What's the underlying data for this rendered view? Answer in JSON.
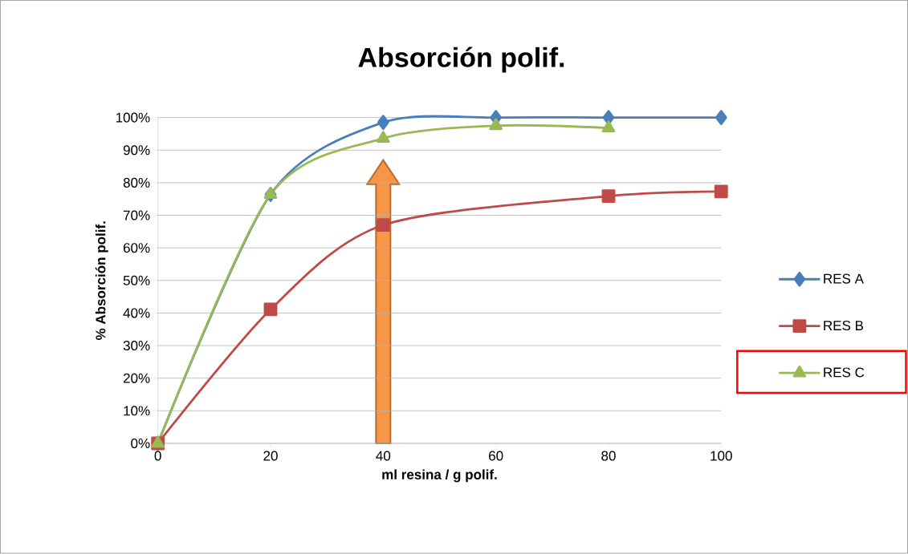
{
  "chart_data": {
    "type": "line",
    "title": "Absorción polif.",
    "xlabel": "ml resina / g polif.",
    "ylabel": "% Absorción polif.",
    "x": [
      0,
      20,
      40,
      60,
      80,
      100
    ],
    "xlim": [
      0,
      100
    ],
    "xticks": [
      0,
      20,
      40,
      60,
      80,
      100
    ],
    "ylim": [
      0,
      100
    ],
    "yticks": [
      {
        "value": 0,
        "label": "0%"
      },
      {
        "value": 10,
        "label": "10%"
      },
      {
        "value": 20,
        "label": "20%"
      },
      {
        "value": 30,
        "label": "30%"
      },
      {
        "value": 40,
        "label": "40%"
      },
      {
        "value": 50,
        "label": "50%"
      },
      {
        "value": 60,
        "label": "60%"
      },
      {
        "value": 70,
        "label": "70%"
      },
      {
        "value": 80,
        "label": "80%"
      },
      {
        "value": 90,
        "label": "90%"
      },
      {
        "value": 100,
        "label": "100%"
      }
    ],
    "grid": "y",
    "legend": "right",
    "series": [
      {
        "name": "RES A",
        "color": "#4a7ebb",
        "marker": "diamond",
        "values": [
          0,
          76.4,
          98.5,
          100,
          100,
          100
        ]
      },
      {
        "name": "RES B",
        "color": "#be4b48",
        "marker": "square",
        "values": [
          0,
          41.1,
          67,
          null,
          75.9,
          77.3
        ]
      },
      {
        "name": "RES C",
        "color": "#98b954",
        "marker": "triangle",
        "values": [
          0,
          76.4,
          93.6,
          97.5,
          96.8,
          null
        ]
      }
    ]
  }
}
